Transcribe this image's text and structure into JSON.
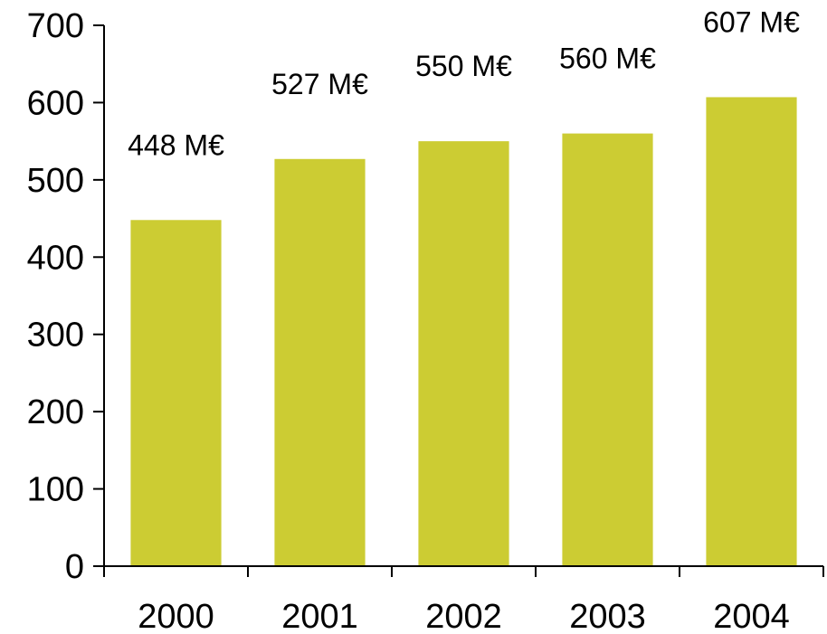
{
  "chart_data": {
    "type": "bar",
    "categories": [
      "2000",
      "2001",
      "2002",
      "2003",
      "2004"
    ],
    "values": [
      448,
      527,
      550,
      560,
      607
    ],
    "data_labels": [
      "448 M€",
      "527 M€",
      "550 M€",
      "560 M€",
      "607 M€"
    ],
    "y_ticks": [
      "0",
      "100",
      "200",
      "300",
      "400",
      "500",
      "600",
      "700"
    ],
    "ylim": [
      0,
      700
    ],
    "title": "",
    "xlabel": "",
    "ylabel": "",
    "grid": false,
    "legend": "none",
    "bar_color": "#cccc33"
  }
}
